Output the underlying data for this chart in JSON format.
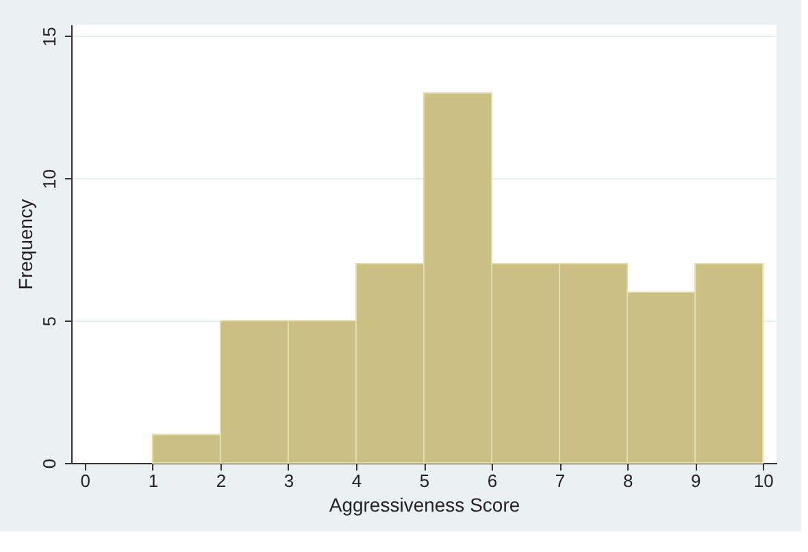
{
  "chart_data": {
    "type": "histogram",
    "xlabel": "Aggressiveness Score",
    "ylabel": "Frequency",
    "bins": [
      1,
      2,
      3,
      4,
      5,
      6,
      7,
      8,
      9,
      10
    ],
    "values": [
      1,
      5,
      5,
      7,
      13,
      7,
      7,
      6,
      7
    ],
    "color": "#cbc081",
    "xlim": [
      -0.2,
      10.2
    ],
    "xticks": [
      0,
      1,
      2,
      3,
      4,
      5,
      6,
      7,
      8,
      9,
      10
    ],
    "ylim": [
      0,
      15.4
    ],
    "yticks": [
      0,
      5,
      10,
      15
    ],
    "grid": "y"
  }
}
